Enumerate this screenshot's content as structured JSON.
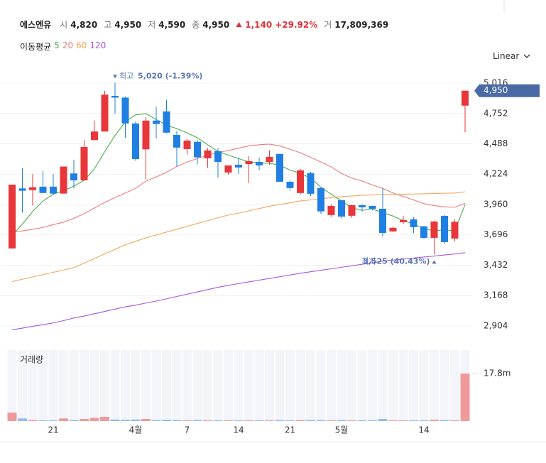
{
  "header": {
    "name": "에스엔유",
    "open": {
      "label": "시",
      "value": "4,820"
    },
    "high": {
      "label": "고",
      "value": "4,950"
    },
    "low": {
      "label": "저",
      "value": "4,590"
    },
    "close": {
      "label": "종",
      "value": "4,950"
    },
    "change": "1,140",
    "change_pct": "+29.92%",
    "volume": {
      "label": "거",
      "value": "17,809,369"
    }
  },
  "ma_legend_label": "이동평균",
  "scale_mode": "Linear",
  "chart_data": {
    "type": "candlestick",
    "categories": [
      null,
      null,
      null,
      null,
      "21",
      null,
      null,
      null,
      null,
      null,
      null,
      null,
      "4월",
      null,
      null,
      null,
      null,
      "7",
      null,
      null,
      null,
      null,
      "14",
      null,
      null,
      null,
      null,
      "21",
      null,
      null,
      null,
      null,
      "5월",
      null,
      null,
      null,
      null,
      null,
      null,
      null,
      "14",
      null,
      null,
      null,
      null
    ],
    "open": [
      3578,
      4100,
      4085,
      4115,
      4115,
      4055,
      4230,
      4170,
      4520,
      4595,
      4905,
      4890,
      4665,
      4440,
      4690,
      4770,
      4565,
      4442,
      4505,
      4362,
      4424,
      4238,
      4306,
      4312,
      4330,
      4330,
      4400,
      4158,
      4060,
      4232,
      4103,
      3868,
      3997,
      3862,
      3954,
      3948,
      3923,
      3726,
      3806,
      3831,
      3770,
      3670,
      3861,
      3664,
      4820
    ],
    "high": [
      4133,
      4275,
      4225,
      4255,
      4225,
      4290,
      4350,
      4520,
      4690,
      4950,
      5020,
      4900,
      4680,
      4720,
      4810,
      4870,
      4600,
      4530,
      4520,
      4450,
      4450,
      4300,
      4370,
      4380,
      4368,
      4430,
      4400,
      4170,
      4270,
      4245,
      4110,
      3960,
      4000,
      3960,
      3960,
      3950,
      4100,
      3770,
      3860,
      3850,
      3775,
      3820,
      3870,
      3830,
      4950
    ],
    "low": [
      3578,
      3890,
      3950,
      4060,
      4040,
      4055,
      4100,
      4170,
      4520,
      4595,
      4750,
      4540,
      4340,
      4180,
      4535,
      4580,
      4290,
      4395,
      4310,
      4280,
      4195,
      4220,
      4226,
      4145,
      4257,
      4306,
      4158,
      4080,
      4050,
      4035,
      3880,
      3855,
      3840,
      3845,
      3900,
      3910,
      3680,
      3720,
      3790,
      3710,
      3660,
      3525,
      3620,
      3640,
      4590
    ],
    "close": [
      4133,
      4080,
      4110,
      4060,
      4055,
      4290,
      4170,
      4460,
      4595,
      4915,
      4890,
      4665,
      4355,
      4690,
      4660,
      4585,
      4455,
      4516,
      4370,
      4430,
      4330,
      4300,
      4282,
      4337,
      4300,
      4374,
      4158,
      4103,
      4257,
      4053,
      3900,
      3948,
      3855,
      3954,
      3936,
      3923,
      3713,
      3757,
      3825,
      3763,
      3670,
      3812,
      3633,
      3810,
      4950
    ],
    "up_color": "#e8363b",
    "down_color": "#1f7fe3",
    "series": [
      {
        "name": "5",
        "color": "#4caf50",
        "values": [
          3690,
          3790,
          3900,
          3990,
          4050,
          4080,
          4120,
          4170,
          4270,
          4420,
          4560,
          4680,
          4740,
          4750,
          4700,
          4650,
          4620,
          4584,
          4540,
          4480,
          4420,
          4390,
          4360,
          4330,
          4320,
          4320,
          4300,
          4260,
          4230,
          4190,
          4110,
          4050,
          3990,
          3930,
          3910,
          3920,
          3890,
          3860,
          3820,
          3790,
          3750,
          3730,
          3740,
          3730,
          3960
        ]
      },
      {
        "name": "20",
        "color": "#f07b7b",
        "values": [
          3720,
          3730,
          3745,
          3760,
          3785,
          3806,
          3840,
          3880,
          3930,
          3978,
          4020,
          4060,
          4100,
          4164,
          4200,
          4240,
          4290,
          4330,
          4360,
          4390,
          4410,
          4430,
          4450,
          4470,
          4480,
          4485,
          4470,
          4440,
          4410,
          4370,
          4330,
          4287,
          4230,
          4190,
          4164,
          4130,
          4100,
          4060,
          4030,
          4000,
          3967,
          3950,
          3940,
          3936,
          3970
        ]
      },
      {
        "name": "60",
        "color": "#f5a55a",
        "values": [
          3290,
          3310,
          3330,
          3350,
          3370,
          3390,
          3411,
          3450,
          3490,
          3530,
          3570,
          3610,
          3640,
          3670,
          3695,
          3720,
          3745,
          3770,
          3795,
          3820,
          3845,
          3868,
          3885,
          3905,
          3925,
          3945,
          3960,
          3975,
          3991,
          4000,
          4010,
          4020,
          4028,
          4034,
          4040,
          4043,
          4045,
          4047,
          4050,
          4051,
          4053,
          4055,
          4058,
          4060,
          4071
        ]
      },
      {
        "name": "120",
        "color": "#a855e0",
        "values": [
          2870,
          2885,
          2900,
          2915,
          2930,
          2950,
          2973,
          2990,
          3010,
          3030,
          3050,
          3070,
          3085,
          3103,
          3120,
          3140,
          3160,
          3180,
          3200,
          3220,
          3240,
          3257,
          3272,
          3287,
          3302,
          3317,
          3332,
          3347,
          3362,
          3375,
          3388,
          3401,
          3414,
          3427,
          3440,
          3453,
          3467,
          3476,
          3485,
          3494,
          3503,
          3512,
          3521,
          3530,
          3541
        ]
      }
    ],
    "ylim": [
      2774,
      5152
    ],
    "yticks": [
      {
        "value": 2904,
        "label": "2,904"
      },
      {
        "value": 3168,
        "label": "3,168"
      },
      {
        "value": 3432,
        "label": "3,432"
      },
      {
        "value": 3696,
        "label": "3,696"
      },
      {
        "value": 3960,
        "label": "3,960"
      },
      {
        "value": 4224,
        "label": "4,224"
      },
      {
        "value": 4488,
        "label": "4,488"
      },
      {
        "value": 4752,
        "label": "4,752"
      },
      {
        "value": 5016,
        "label": "5,016"
      }
    ],
    "grid": true,
    "price_tag": {
      "value": 4950,
      "label": "4,950",
      "color": "#4a6aa5"
    },
    "high_annotation": {
      "label": "최고",
      "value": 5020,
      "text": "5,020 (-1.39%)"
    },
    "low_annotation": {
      "label": "최저",
      "value": 3525,
      "text": "3,525 (40.43%)"
    },
    "volume": {
      "label": "거래량",
      "values": [
        3.2,
        1.0,
        0.4,
        0.3,
        0.3,
        1.0,
        0.4,
        0.8,
        1.2,
        1.6,
        0.6,
        0.5,
        0.6,
        0.8,
        0.4,
        0.5,
        0.4,
        0.3,
        0.4,
        0.3,
        0.3,
        0.3,
        0.3,
        0.3,
        0.3,
        0.3,
        0.4,
        0.3,
        0.4,
        0.4,
        0.4,
        0.3,
        0.4,
        0.3,
        0.3,
        0.3,
        0.8,
        0.3,
        0.3,
        0.3,
        0.3,
        0.5,
        0.4,
        0.3,
        17.8
      ],
      "ylim": [
        0,
        26.6
      ],
      "yticks": [
        {
          "value": 17.8,
          "label": "17.8m"
        }
      ],
      "up_color": "#ef9a9a",
      "down_color": "#90bdf0"
    }
  }
}
